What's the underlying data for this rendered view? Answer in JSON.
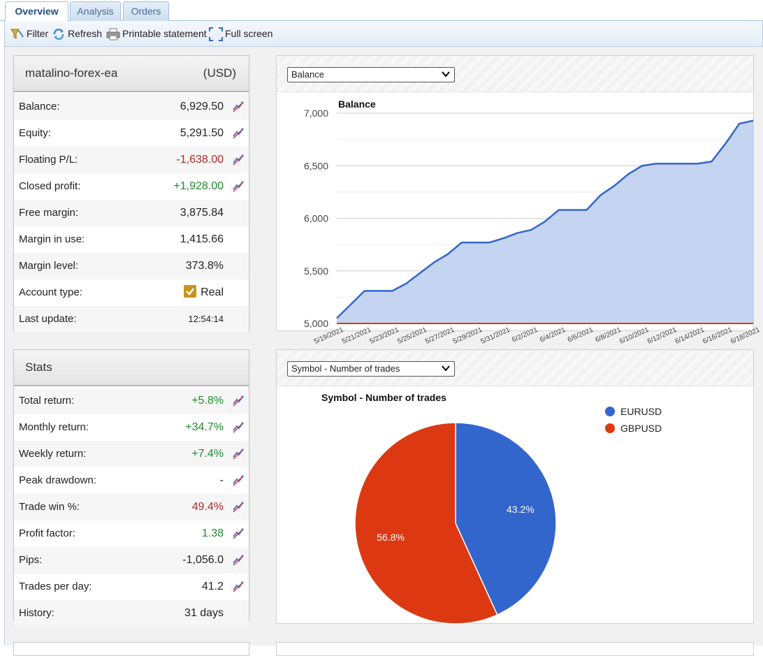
{
  "tabs": [
    {
      "label": "Overview",
      "active": true
    },
    {
      "label": "Analysis",
      "active": false
    },
    {
      "label": "Orders",
      "active": false
    }
  ],
  "toolbar": {
    "filter": "Filter",
    "refresh": "Refresh",
    "print": "Printable statement",
    "fullscreen": "Full screen"
  },
  "account": {
    "name": "matalino-forex-ea",
    "currency": "(USD)",
    "rows": [
      {
        "label": "Balance:",
        "value": "6,929.50",
        "tone": "",
        "icon": true
      },
      {
        "label": "Equity:",
        "value": "5,291.50",
        "tone": "",
        "icon": true
      },
      {
        "label": "Floating P/L:",
        "value": "-1,638.00",
        "tone": "neg",
        "icon": true
      },
      {
        "label": "Closed profit:",
        "value": "+1,928.00",
        "tone": "pos",
        "icon": true
      },
      {
        "label": "Free margin:",
        "value": "3,875.84",
        "tone": "",
        "icon": false
      },
      {
        "label": "Margin in use:",
        "value": "1,415.66",
        "tone": "",
        "icon": false
      },
      {
        "label": "Margin level:",
        "value": "373.8%",
        "tone": "",
        "icon": false
      },
      {
        "label": "Account type:",
        "value": "Real",
        "tone": "",
        "icon": false,
        "checkbox": true
      },
      {
        "label": "Last update:",
        "value": "12:54:14",
        "tone": "small",
        "icon": false
      }
    ]
  },
  "stats": {
    "title": "Stats",
    "rows": [
      {
        "label": "Total return:",
        "value": "+5.8%",
        "tone": "pos",
        "icon": true
      },
      {
        "label": "Monthly return:",
        "value": "+34.7%",
        "tone": "pos",
        "icon": true
      },
      {
        "label": "Weekly return:",
        "value": "+7.4%",
        "tone": "pos",
        "icon": true
      },
      {
        "label": "Peak drawdown:",
        "value": "-",
        "tone": "",
        "icon": true
      },
      {
        "label": "Trade win %:",
        "value": "49.4%",
        "tone": "neg",
        "icon": true
      },
      {
        "label": "Profit factor:",
        "value": "1.38",
        "tone": "pos",
        "icon": true
      },
      {
        "label": "Pips:",
        "value": "-1,056.0",
        "tone": "",
        "icon": true
      },
      {
        "label": "Trades per day:",
        "value": "41.2",
        "tone": "",
        "icon": true
      },
      {
        "label": "History:",
        "value": "31 days",
        "tone": "",
        "icon": false
      }
    ]
  },
  "balance_select": "Balance",
  "symbol_select": "Symbol - Number of trades",
  "colors": {
    "series": "#3366cc",
    "fill": "#c2d2f0",
    "zero_line": "#dc3912",
    "pie_a": "#3366cc",
    "pie_b": "#dc3912"
  },
  "chart_data": [
    {
      "type": "area",
      "title": "Balance",
      "ylim": [
        5000,
        7000
      ],
      "yticks": [
        "5,000",
        "5,500",
        "6,000",
        "6,500",
        "7,000"
      ],
      "ytick_values": [
        5000,
        5500,
        6000,
        6500,
        7000
      ],
      "xticks": [
        "5/19/2021",
        "5/21/2021",
        "5/23/2021",
        "5/25/2021",
        "5/27/2021",
        "5/29/2021",
        "5/31/2021",
        "6/2/2021",
        "6/4/2021",
        "6/6/2021",
        "6/8/2021",
        "6/10/2021",
        "6/12/2021",
        "6/14/2021",
        "6/16/2021",
        "6/18/2021"
      ],
      "x": [
        "5/19/2021",
        "5/20/2021",
        "5/21/2021",
        "5/22/2021",
        "5/23/2021",
        "5/24/2021",
        "5/25/2021",
        "5/26/2021",
        "5/27/2021",
        "5/28/2021",
        "5/29/2021",
        "5/30/2021",
        "5/31/2021",
        "6/1/2021",
        "6/2/2021",
        "6/3/2021",
        "6/4/2021",
        "6/5/2021",
        "6/6/2021",
        "6/7/2021",
        "6/8/2021",
        "6/9/2021",
        "6/10/2021",
        "6/11/2021",
        "6/12/2021",
        "6/13/2021",
        "6/14/2021",
        "6/15/2021",
        "6/16/2021",
        "6/17/2021",
        "6/18/2021"
      ],
      "values": [
        5050,
        5180,
        5310,
        5310,
        5310,
        5380,
        5480,
        5580,
        5660,
        5770,
        5770,
        5770,
        5810,
        5860,
        5890,
        5970,
        6080,
        6080,
        6080,
        6220,
        6310,
        6420,
        6500,
        6520,
        6520,
        6520,
        6520,
        6540,
        6710,
        6900,
        6929.5
      ],
      "baseline": 5000
    },
    {
      "type": "pie",
      "title": "Symbol - Number of trades",
      "legend": "right",
      "labels": [
        "EURUSD",
        "GBPUSD"
      ],
      "values": [
        43.2,
        56.8
      ],
      "value_labels": [
        "43.2%",
        "56.8%"
      ]
    }
  ]
}
